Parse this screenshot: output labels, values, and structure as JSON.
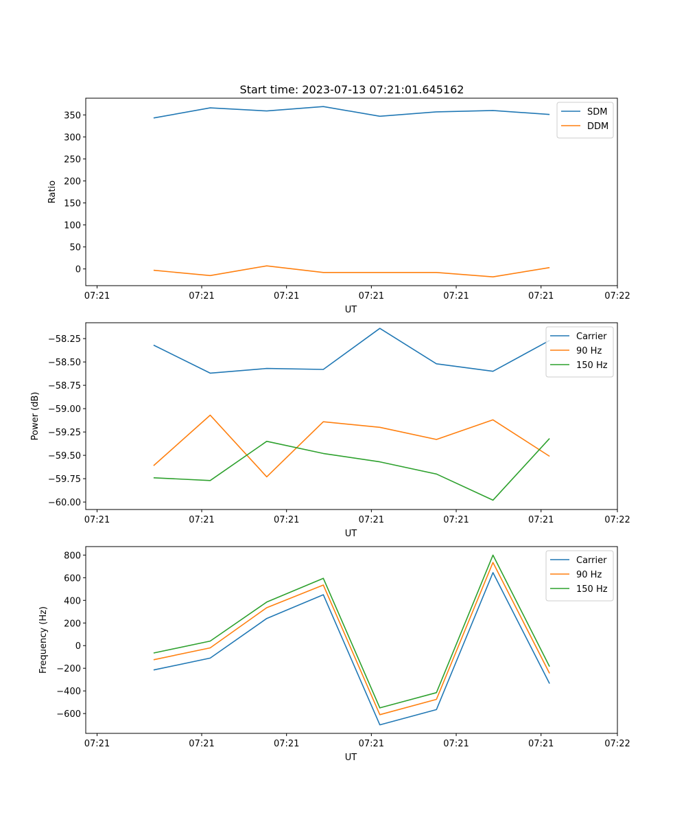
{
  "figure_title": "Start time: 2023-07-13 07:21:01.645162",
  "chart_data": [
    {
      "type": "line",
      "xlabel": "UT",
      "ylabel": "Ratio",
      "x": [
        1,
        2,
        3,
        4,
        5,
        6,
        7,
        8
      ],
      "xlim": [
        -0.2,
        9.2
      ],
      "xticks": [
        0,
        1.85,
        3.35,
        4.85,
        6.35,
        7.85,
        9.2
      ],
      "xtick_labels": [
        "07:21",
        "07:21",
        "07:21",
        "07:21",
        "07:21",
        "07:21",
        "07:22"
      ],
      "ylim": [
        -38,
        388
      ],
      "yticks": [
        0,
        50,
        100,
        150,
        200,
        250,
        300,
        350
      ],
      "ytick_labels": [
        "0",
        "50",
        "100",
        "150",
        "200",
        "250",
        "300",
        "350"
      ],
      "legend_position": "top-right",
      "series": [
        {
          "name": "SDM",
          "color": "#1f77b4",
          "values": [
            343,
            366,
            359,
            369,
            347,
            357,
            360,
            351
          ]
        },
        {
          "name": "DDM",
          "color": "#ff7f0e",
          "values": [
            -3,
            -15,
            7,
            -8,
            -8,
            -8,
            -18,
            3
          ]
        }
      ]
    },
    {
      "type": "line",
      "xlabel": "UT",
      "ylabel": "Power (dB)",
      "x": [
        1,
        2,
        3,
        4,
        5,
        6,
        7,
        8
      ],
      "xlim": [
        -0.2,
        9.2
      ],
      "xticks": [
        0,
        1.85,
        3.35,
        4.85,
        6.35,
        7.85,
        9.2
      ],
      "xtick_labels": [
        "07:21",
        "07:21",
        "07:21",
        "07:21",
        "07:21",
        "07:21",
        "07:22"
      ],
      "ylim": [
        -60.08,
        -58.08
      ],
      "yticks": [
        -60.0,
        -59.75,
        -59.5,
        -59.25,
        -59.0,
        -58.75,
        -58.5,
        -58.25
      ],
      "ytick_labels": [
        "−60.00",
        "−59.75",
        "−59.50",
        "−59.25",
        "−59.00",
        "−58.75",
        "−58.50",
        "−58.25"
      ],
      "legend_position": "top-right",
      "series": [
        {
          "name": "Carrier",
          "color": "#1f77b4",
          "values": [
            -58.32,
            -58.62,
            -58.57,
            -58.58,
            -58.14,
            -58.52,
            -58.6,
            -58.27
          ]
        },
        {
          "name": "90 Hz",
          "color": "#ff7f0e",
          "values": [
            -59.61,
            -59.07,
            -59.73,
            -59.14,
            -59.2,
            -59.33,
            -59.12,
            -59.51
          ]
        },
        {
          "name": "150 Hz",
          "color": "#2ca02c",
          "values": [
            -59.74,
            -59.77,
            -59.35,
            -59.48,
            -59.57,
            -59.7,
            -59.98,
            -59.32
          ]
        }
      ]
    },
    {
      "type": "line",
      "xlabel": "UT",
      "ylabel": "Frequency (Hz)",
      "x": [
        1,
        2,
        3,
        4,
        5,
        6,
        7,
        8
      ],
      "xlim": [
        -0.2,
        9.2
      ],
      "xticks": [
        0,
        1.85,
        3.35,
        4.85,
        6.35,
        7.85,
        9.2
      ],
      "xtick_labels": [
        "07:21",
        "07:21",
        "07:21",
        "07:21",
        "07:21",
        "07:21",
        "07:22"
      ],
      "ylim": [
        -775,
        875
      ],
      "yticks": [
        -600,
        -400,
        -200,
        0,
        200,
        400,
        600,
        800
      ],
      "ytick_labels": [
        "−600",
        "−400",
        "−200",
        "0",
        "200",
        "400",
        "600",
        "800"
      ],
      "legend_position": "top-right",
      "series": [
        {
          "name": "Carrier",
          "color": "#1f77b4",
          "values": [
            -215,
            -110,
            240,
            450,
            -700,
            -565,
            645,
            -335
          ]
        },
        {
          "name": "90 Hz",
          "color": "#ff7f0e",
          "values": [
            -125,
            -20,
            335,
            535,
            -610,
            -475,
            735,
            -245
          ]
        },
        {
          "name": "150 Hz",
          "color": "#2ca02c",
          "values": [
            -65,
            40,
            385,
            595,
            -550,
            -415,
            800,
            -185
          ]
        }
      ]
    }
  ]
}
